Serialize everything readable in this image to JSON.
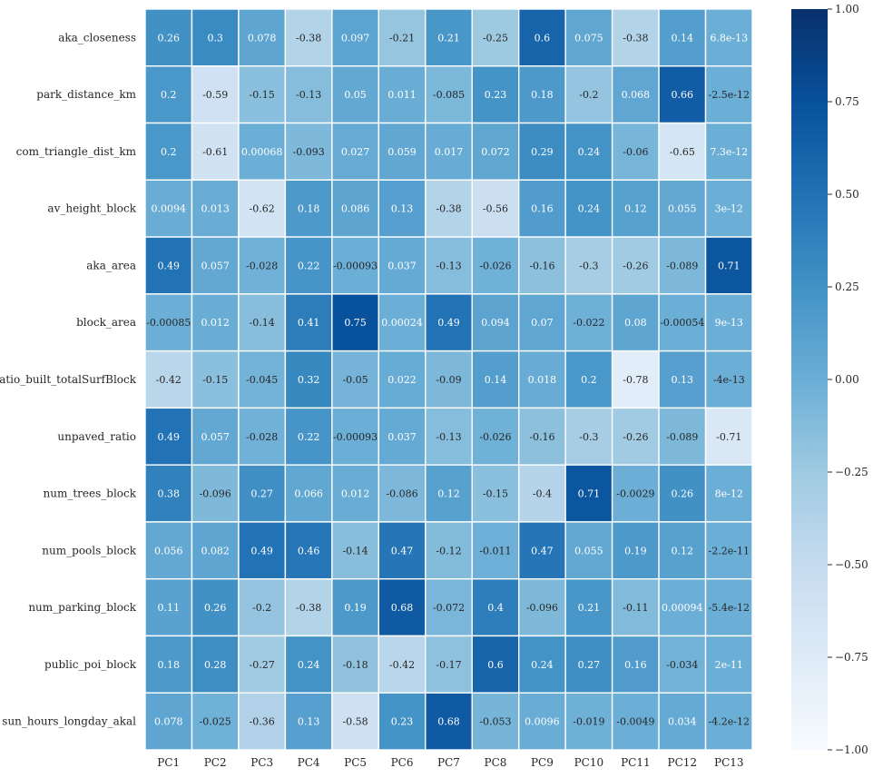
{
  "chart_data": {
    "type": "heatmap",
    "title": "",
    "xlabel": "",
    "ylabel": "",
    "columns": [
      "PC1",
      "PC2",
      "PC3",
      "PC4",
      "PC5",
      "PC6",
      "PC7",
      "PC8",
      "PC9",
      "PC10",
      "PC11",
      "PC12",
      "PC13"
    ],
    "rows": [
      "aka_closeness",
      "park_distance_km",
      "com_triangle_dist_km",
      "av_height_block",
      "aka_area",
      "block_area",
      "ratio_built_totalSurfBlock",
      "unpaved_ratio",
      "num_trees_block",
      "num_pools_block",
      "num_parking_block",
      "public_poi_block",
      "sun_hours_longday_akal"
    ],
    "labels": [
      [
        "0.26",
        "0.3",
        "0.078",
        "-0.38",
        "0.097",
        "-0.21",
        "0.21",
        "-0.25",
        "0.6",
        "0.075",
        "-0.38",
        "0.14",
        "6.8e-13"
      ],
      [
        "0.2",
        "-0.59",
        "-0.15",
        "-0.13",
        "0.05",
        "0.011",
        "-0.085",
        "0.23",
        "0.18",
        "-0.2",
        "0.068",
        "0.66",
        "-2.5e-12"
      ],
      [
        "0.2",
        "-0.61",
        "0.00068",
        "-0.093",
        "0.027",
        "0.059",
        "0.017",
        "0.072",
        "0.29",
        "0.24",
        "-0.06",
        "-0.65",
        "7.3e-12"
      ],
      [
        "0.0094",
        "0.013",
        "-0.62",
        "0.18",
        "0.086",
        "0.13",
        "-0.38",
        "-0.56",
        "0.16",
        "0.24",
        "0.12",
        "0.055",
        "3e-12"
      ],
      [
        "0.49",
        "0.057",
        "-0.028",
        "0.22",
        "-0.00093",
        "0.037",
        "-0.13",
        "-0.026",
        "-0.16",
        "-0.3",
        "-0.26",
        "-0.089",
        "0.71"
      ],
      [
        "-0.00085",
        "0.012",
        "-0.14",
        "0.41",
        "0.75",
        "0.00024",
        "0.49",
        "0.094",
        "0.07",
        "-0.022",
        "0.08",
        "-0.00054",
        "9e-13"
      ],
      [
        "-0.42",
        "-0.15",
        "-0.045",
        "0.32",
        "-0.05",
        "0.022",
        "-0.09",
        "0.14",
        "0.018",
        "0.2",
        "-0.78",
        "0.13",
        "-4e-13"
      ],
      [
        "0.49",
        "0.057",
        "-0.028",
        "0.22",
        "-0.00093",
        "0.037",
        "-0.13",
        "-0.026",
        "-0.16",
        "-0.3",
        "-0.26",
        "-0.089",
        "-0.71"
      ],
      [
        "0.38",
        "-0.096",
        "0.27",
        "0.066",
        "0.012",
        "-0.086",
        "0.12",
        "-0.15",
        "-0.4",
        "0.71",
        "-0.0029",
        "0.26",
        "8e-12"
      ],
      [
        "0.056",
        "0.082",
        "0.49",
        "0.46",
        "-0.14",
        "0.47",
        "-0.12",
        "-0.011",
        "0.47",
        "0.055",
        "0.19",
        "0.12",
        "-2.2e-11"
      ],
      [
        "0.11",
        "0.26",
        "-0.2",
        "-0.38",
        "0.19",
        "0.68",
        "-0.072",
        "0.4",
        "-0.096",
        "0.21",
        "-0.11",
        "0.00094",
        "-5.4e-12"
      ],
      [
        "0.18",
        "0.28",
        "-0.27",
        "0.24",
        "-0.18",
        "-0.42",
        "-0.17",
        "0.6",
        "0.24",
        "0.27",
        "0.16",
        "-0.034",
        "2e-11"
      ],
      [
        "0.078",
        "-0.025",
        "-0.36",
        "0.13",
        "-0.58",
        "0.23",
        "0.68",
        "-0.053",
        "0.0096",
        "-0.019",
        "-0.0049",
        "0.034",
        "-4.2e-12"
      ]
    ],
    "vmin": -1,
    "vmax": 1,
    "colormap": [
      "#f7fbff",
      "#deebf7",
      "#c6dbef",
      "#9ecae1",
      "#6baed6",
      "#4292c6",
      "#2171b5",
      "#08519c",
      "#08306b"
    ],
    "colorbar_ticks": [
      "1.00",
      "0.75",
      "0.50",
      "0.25",
      "0.00",
      "−0.25",
      "−0.50",
      "−0.75",
      "−1.00"
    ],
    "grid_color": "#ffffff"
  }
}
